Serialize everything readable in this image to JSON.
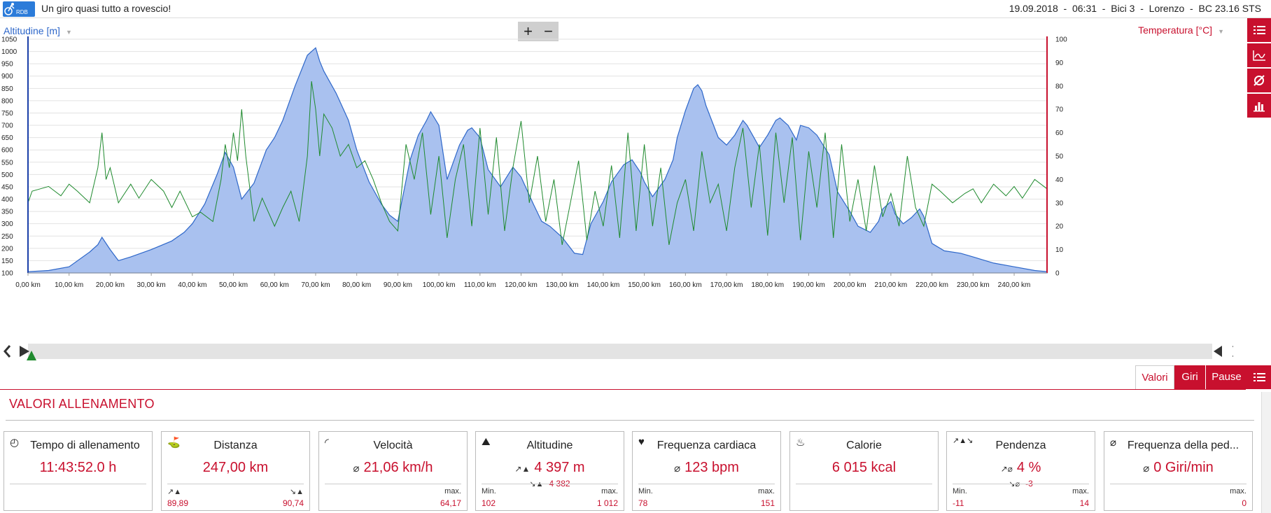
{
  "header": {
    "logo_text": "RDB",
    "title": "Un giro quasi tutto a rovescio!",
    "info": "19.09.2018  -  06:31  -  Bici 3  -  Lorenzo  -  BC 23.16 STS"
  },
  "chart_header": {
    "left_axis_label": "Altitudine [m]",
    "right_axis_label": "Temperatura [°C]",
    "zoom_in": "+",
    "zoom_out": "−"
  },
  "sidebar_buttons": [
    "list-icon",
    "line-chart-icon",
    "average-icon",
    "bar-chart-icon"
  ],
  "chart_data": {
    "type": "area",
    "title": "",
    "xlabel": "",
    "ylabel": "Altitudine [m]",
    "y2label": "Temperatura [°C]",
    "xlim": [
      0,
      248
    ],
    "ylim": [
      100,
      1050
    ],
    "y2lim": [
      0,
      100
    ],
    "x_ticks": [
      "0,00 km",
      "10,00 km",
      "20,00 km",
      "30,00 km",
      "40,00 km",
      "50,00 km",
      "60,00 km",
      "70,00 km",
      "80,00 km",
      "90,00 km",
      "100,00 km",
      "110,00 km",
      "120,00 km",
      "130,00 km",
      "140,00 km",
      "150,00 km",
      "160,00 km",
      "170,00 km",
      "180,00 km",
      "190,00 km",
      "200,00 km",
      "210,00 km",
      "220,00 km",
      "230,00 km",
      "240,00 km"
    ],
    "y_ticks": [
      100,
      150,
      200,
      250,
      300,
      350,
      400,
      450,
      500,
      550,
      600,
      650,
      700,
      750,
      800,
      850,
      900,
      950,
      1000,
      1050
    ],
    "y2_ticks": [
      0,
      10,
      20,
      30,
      40,
      50,
      60,
      70,
      80,
      90,
      100
    ],
    "grid": true,
    "colors": {
      "altitude": "#2e67c9",
      "altitude_fill": "#a9c1ef",
      "series2": "#1f8a2e",
      "left_axis": "#1a3fa8",
      "right_axis": "#c8102e"
    },
    "series": [
      {
        "name": "Altitudine [m]",
        "axis": "left",
        "x": [
          0,
          5,
          10,
          15,
          17,
          18,
          20,
          22,
          25,
          30,
          35,
          38,
          40,
          43,
          46,
          48,
          50,
          52,
          55,
          58,
          60,
          62,
          65,
          68,
          70,
          71,
          72,
          73,
          75,
          78,
          80,
          83,
          86,
          88,
          90,
          93,
          95,
          97,
          98,
          100,
          102,
          105,
          107,
          108,
          110,
          112,
          115,
          118,
          120,
          123,
          125,
          127,
          130,
          133,
          135,
          137,
          140,
          142,
          145,
          147,
          149,
          150,
          152,
          155,
          157,
          158,
          160,
          162,
          163,
          164,
          165,
          168,
          170,
          172,
          174,
          175,
          177,
          178,
          180,
          182,
          183,
          185,
          187,
          188,
          190,
          192,
          195,
          197,
          200,
          202,
          205,
          207,
          208,
          210,
          211,
          213,
          215,
          217,
          218,
          220,
          223,
          227,
          230,
          235,
          240,
          245,
          248
        ],
        "y": [
          105,
          110,
          125,
          185,
          215,
          245,
          195,
          150,
          165,
          195,
          230,
          265,
          300,
          380,
          500,
          590,
          530,
          400,
          465,
          600,
          650,
          720,
          860,
          985,
          1015,
          960,
          920,
          890,
          830,
          720,
          600,
          470,
          380,
          335,
          310,
          560,
          660,
          720,
          755,
          700,
          480,
          620,
          680,
          690,
          650,
          520,
          450,
          530,
          490,
          380,
          310,
          290,
          245,
          180,
          175,
          300,
          390,
          470,
          540,
          560,
          510,
          470,
          410,
          480,
          560,
          650,
          760,
          850,
          865,
          840,
          780,
          650,
          620,
          660,
          720,
          700,
          640,
          610,
          660,
          720,
          730,
          700,
          640,
          700,
          690,
          660,
          580,
          430,
          350,
          290,
          265,
          310,
          360,
          390,
          340,
          300,
          325,
          360,
          330,
          220,
          190,
          180,
          165,
          140,
          125,
          110,
          105
        ]
      },
      {
        "name": "Temperatura [°C]",
        "axis": "right",
        "values_note": "",
        "x": [
          0,
          1,
          3,
          5,
          8,
          10,
          12,
          15,
          17,
          18,
          19,
          20,
          22,
          25,
          27,
          30,
          33,
          35,
          37,
          40,
          42,
          45,
          47,
          48,
          49,
          50,
          51,
          52,
          53,
          55,
          57,
          60,
          62,
          64,
          66,
          68,
          69,
          70,
          71,
          72,
          74,
          76,
          78,
          80,
          82,
          84,
          86,
          88,
          90,
          92,
          94,
          96,
          98,
          100,
          102,
          104,
          106,
          108,
          110,
          112,
          114,
          116,
          118,
          120,
          122,
          124,
          126,
          128,
          130,
          132,
          134,
          136,
          138,
          140,
          142,
          144,
          146,
          148,
          150,
          152,
          154,
          156,
          158,
          160,
          162,
          164,
          166,
          168,
          170,
          172,
          174,
          176,
          178,
          180,
          182,
          184,
          186,
          188,
          190,
          192,
          194,
          196,
          198,
          200,
          202,
          204,
          206,
          208,
          210,
          212,
          214,
          216,
          218,
          220,
          222,
          225,
          228,
          230,
          232,
          235,
          238,
          240,
          242,
          245,
          248
        ],
        "y": [
          30,
          35,
          36,
          37,
          33,
          38,
          35,
          30,
          45,
          60,
          40,
          45,
          30,
          38,
          32,
          40,
          35,
          28,
          35,
          24,
          26,
          22,
          40,
          55,
          45,
          60,
          48,
          70,
          50,
          22,
          32,
          20,
          28,
          35,
          22,
          50,
          82,
          70,
          50,
          68,
          62,
          50,
          55,
          45,
          48,
          40,
          30,
          22,
          18,
          55,
          40,
          60,
          25,
          50,
          15,
          40,
          55,
          20,
          62,
          25,
          58,
          18,
          45,
          65,
          30,
          50,
          22,
          40,
          12,
          30,
          48,
          14,
          35,
          20,
          46,
          15,
          60,
          18,
          55,
          20,
          45,
          12,
          30,
          40,
          18,
          52,
          30,
          38,
          18,
          45,
          62,
          28,
          55,
          16,
          60,
          30,
          58,
          14,
          52,
          28,
          60,
          15,
          55,
          22,
          40,
          18,
          46,
          24,
          34,
          20,
          50,
          28,
          20,
          38,
          35,
          30,
          34,
          36,
          30,
          38,
          33,
          37,
          32,
          40,
          36
        ]
      }
    ]
  },
  "tabs": {
    "valori": "Valori",
    "giri": "Giri",
    "pause": "Pause"
  },
  "section": {
    "title": "VALORI ALLENAMENTO"
  },
  "cards": [
    {
      "icon": "stopwatch-icon",
      "label": "Tempo di allenamento",
      "main": "11:43:52.0 h"
    },
    {
      "icon": "signpost-icon",
      "label": "Distanza",
      "main": "247,00 km",
      "bl_value": "89,89",
      "br_value": "90,74"
    },
    {
      "icon": "speedometer-icon",
      "label": "Velocità",
      "avg": "⌀",
      "main": "21,06 km/h",
      "br_label": "max.",
      "br_value": "64,17"
    },
    {
      "icon": "mountain-icon",
      "label": "Altitudine",
      "main": "4 397 m",
      "sub": "4 382",
      "bl_label": "Min.",
      "bl_value": "102",
      "br_label": "max.",
      "br_value": "1 012"
    },
    {
      "icon": "heart-icon",
      "label": "Frequenza cardiaca",
      "avg": "⌀",
      "main": "123 bpm",
      "bl_label": "Min.",
      "bl_value": "78",
      "br_label": "max.",
      "br_value": "151"
    },
    {
      "icon": "flame-icon",
      "label": "Calorie",
      "main": "6 015 kcal"
    },
    {
      "icon": "slope-icon",
      "label": "Pendenza",
      "main": "4 %",
      "sub": "-3",
      "bl_label": "Min.",
      "bl_value": "-11",
      "br_label": "max.",
      "br_value": "14"
    },
    {
      "icon": "cadence-icon",
      "label": "Frequenza della ped...",
      "avg": "⌀",
      "main": "0 Giri/min",
      "br_label": "max.",
      "br_value": "0"
    }
  ]
}
